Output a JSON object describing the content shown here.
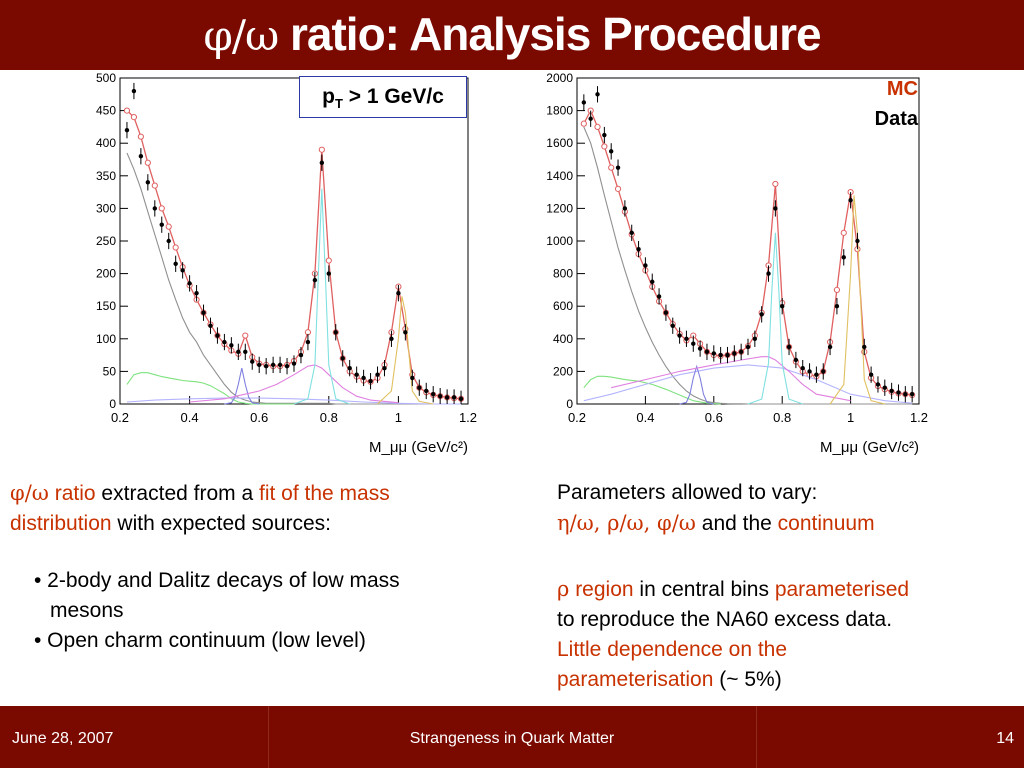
{
  "header": {
    "title_symbols": "φ/ω",
    "title_text": " ratio: Analysis Procedure"
  },
  "left_plot_box": {
    "label_p": "p",
    "label_sub": "T",
    "label_rest": " > 1 GeV/c"
  },
  "legend": {
    "mc": "MC",
    "data": "Data"
  },
  "chart_data": [
    {
      "type": "line",
      "panel": "left",
      "title": "",
      "xlabel": "M_μμ (GeV/c²)",
      "ylabel": "",
      "xlim": [
        0.2,
        1.2
      ],
      "ylim": [
        0,
        500
      ],
      "xticks": [
        0.2,
        0.4,
        0.6,
        0.8,
        1,
        1.2
      ],
      "yticks": [
        0,
        50,
        100,
        150,
        200,
        250,
        300,
        350,
        400,
        450,
        500
      ],
      "series": [
        {
          "role": "data",
          "color": "#000000",
          "x": [
            0.22,
            0.24,
            0.26,
            0.28,
            0.3,
            0.32,
            0.34,
            0.36,
            0.38,
            0.4,
            0.42,
            0.44,
            0.46,
            0.48,
            0.5,
            0.52,
            0.54,
            0.56,
            0.58,
            0.6,
            0.62,
            0.64,
            0.66,
            0.68,
            0.7,
            0.72,
            0.74,
            0.76,
            0.78,
            0.8,
            0.82,
            0.84,
            0.86,
            0.88,
            0.9,
            0.92,
            0.94,
            0.96,
            0.98,
            1.0,
            1.02,
            1.04,
            1.06,
            1.08,
            1.1,
            1.12,
            1.14,
            1.16,
            1.18
          ],
          "y": [
            420,
            480,
            380,
            340,
            300,
            275,
            250,
            215,
            205,
            185,
            170,
            140,
            120,
            105,
            95,
            90,
            80,
            80,
            65,
            60,
            58,
            60,
            60,
            58,
            62,
            75,
            95,
            190,
            370,
            200,
            110,
            70,
            55,
            45,
            40,
            35,
            45,
            55,
            100,
            170,
            110,
            40,
            25,
            20,
            15,
            12,
            10,
            10,
            8
          ]
        },
        {
          "role": "mc_total",
          "color": "#e06060",
          "x": [
            0.22,
            0.24,
            0.26,
            0.28,
            0.3,
            0.32,
            0.34,
            0.36,
            0.38,
            0.4,
            0.42,
            0.44,
            0.46,
            0.48,
            0.5,
            0.52,
            0.54,
            0.56,
            0.58,
            0.6,
            0.62,
            0.64,
            0.66,
            0.68,
            0.7,
            0.72,
            0.74,
            0.76,
            0.78,
            0.8,
            0.82,
            0.84,
            0.86,
            0.88,
            0.9,
            0.92,
            0.94,
            0.96,
            0.98,
            1.0,
            1.02,
            1.04,
            1.06,
            1.08,
            1.1,
            1.12,
            1.14,
            1.16,
            1.18
          ],
          "y": [
            450,
            440,
            410,
            370,
            335,
            300,
            272,
            240,
            210,
            182,
            160,
            140,
            122,
            105,
            92,
            82,
            77,
            105,
            72,
            62,
            60,
            58,
            58,
            60,
            66,
            80,
            110,
            200,
            390,
            220,
            110,
            70,
            50,
            42,
            36,
            34,
            40,
            60,
            110,
            180,
            115,
            45,
            25,
            18,
            14,
            12,
            10,
            9,
            8
          ]
        },
        {
          "role": "continuum",
          "color": "#909090",
          "x": [
            0.22,
            0.24,
            0.26,
            0.28,
            0.3,
            0.32,
            0.34,
            0.36,
            0.38,
            0.4,
            0.42,
            0.44,
            0.46,
            0.48,
            0.5,
            0.52,
            0.54,
            0.56,
            0.58,
            0.6,
            0.62,
            0.64,
            0.66,
            0.68,
            0.7,
            0.72,
            0.74,
            0.76,
            0.78,
            0.8,
            0.82,
            0.84,
            0.86,
            0.88,
            0.9,
            0.92,
            0.94,
            0.96,
            0.98,
            1.0,
            1.02,
            1.04,
            1.06,
            1.08,
            1.1,
            1.12,
            1.14,
            1.16,
            1.18
          ],
          "y": [
            385,
            360,
            330,
            295,
            260,
            225,
            190,
            160,
            132,
            110,
            95,
            75,
            60,
            45,
            30,
            18,
            10,
            6,
            3,
            2,
            1,
            1,
            1,
            1,
            1,
            1,
            1,
            1,
            1,
            1,
            0,
            0,
            0,
            0,
            0,
            0,
            0,
            0,
            0,
            0,
            0,
            0,
            0,
            0,
            0,
            0,
            0,
            0,
            0
          ]
        },
        {
          "role": "eta_dalitz",
          "color": "#7ee27e",
          "x": [
            0.22,
            0.24,
            0.26,
            0.28,
            0.3,
            0.32,
            0.34,
            0.36,
            0.38,
            0.4,
            0.42,
            0.44,
            0.46,
            0.48,
            0.5,
            0.52,
            0.54,
            0.56,
            0.58,
            0.6,
            0.62,
            0.64,
            0.66,
            0.68,
            0.7
          ],
          "y": [
            30,
            45,
            48,
            48,
            45,
            42,
            40,
            38,
            36,
            35,
            34,
            32,
            28,
            22,
            16,
            8,
            3,
            1,
            0,
            0,
            0,
            0,
            0,
            0,
            0
          ]
        },
        {
          "role": "omega_dalitz",
          "color": "#b4b4ff",
          "x": [
            0.22,
            0.3,
            0.4,
            0.5,
            0.6,
            0.7,
            0.8,
            0.9,
            1.0,
            1.1,
            1.18
          ],
          "y": [
            3,
            6,
            8,
            9,
            9,
            8,
            6,
            3,
            1,
            0,
            0
          ]
        },
        {
          "role": "eta",
          "color": "#8080e0",
          "x": [
            0.5,
            0.52,
            0.53,
            0.54,
            0.55,
            0.56,
            0.57,
            0.58,
            0.6
          ],
          "y": [
            0,
            2,
            10,
            30,
            55,
            30,
            10,
            2,
            0
          ]
        },
        {
          "role": "rho",
          "color": "#e080e0",
          "x": [
            0.4,
            0.5,
            0.6,
            0.65,
            0.7,
            0.74,
            0.76,
            0.78,
            0.8,
            0.84,
            0.88,
            0.92,
            1.0
          ],
          "y": [
            3,
            8,
            20,
            30,
            45,
            58,
            60,
            55,
            45,
            25,
            12,
            6,
            2
          ]
        },
        {
          "role": "omega",
          "color": "#80e0e0",
          "x": [
            0.7,
            0.74,
            0.76,
            0.77,
            0.78,
            0.79,
            0.8,
            0.82,
            0.86
          ],
          "y": [
            0,
            8,
            60,
            200,
            330,
            200,
            60,
            8,
            0
          ]
        },
        {
          "role": "phi",
          "color": "#e0c060",
          "x": [
            0.94,
            0.98,
            1.0,
            1.01,
            1.02,
            1.03,
            1.04,
            1.06,
            1.1
          ],
          "y": [
            0,
            20,
            100,
            165,
            140,
            80,
            20,
            4,
            0
          ]
        }
      ]
    },
    {
      "type": "line",
      "panel": "right",
      "title": "",
      "xlabel": "M_μμ (GeV/c²)",
      "ylabel": "",
      "xlim": [
        0.2,
        1.2
      ],
      "ylim": [
        0,
        2000
      ],
      "xticks": [
        0.2,
        0.4,
        0.6,
        0.8,
        1,
        1.2
      ],
      "yticks": [
        0,
        200,
        400,
        600,
        800,
        1000,
        1200,
        1400,
        1600,
        1800,
        2000
      ],
      "series": [
        {
          "role": "data",
          "color": "#000000",
          "x": [
            0.22,
            0.24,
            0.26,
            0.28,
            0.3,
            0.32,
            0.34,
            0.36,
            0.38,
            0.4,
            0.42,
            0.44,
            0.46,
            0.48,
            0.5,
            0.52,
            0.54,
            0.56,
            0.58,
            0.6,
            0.62,
            0.64,
            0.66,
            0.68,
            0.7,
            0.72,
            0.74,
            0.76,
            0.78,
            0.8,
            0.82,
            0.84,
            0.86,
            0.88,
            0.9,
            0.92,
            0.94,
            0.96,
            0.98,
            1.0,
            1.02,
            1.04,
            1.06,
            1.08,
            1.1,
            1.12,
            1.14,
            1.16,
            1.18
          ],
          "y": [
            1850,
            1750,
            1900,
            1650,
            1550,
            1450,
            1200,
            1050,
            950,
            850,
            750,
            660,
            560,
            480,
            420,
            400,
            370,
            340,
            320,
            310,
            300,
            300,
            310,
            320,
            350,
            400,
            550,
            800,
            1200,
            600,
            350,
            270,
            220,
            200,
            180,
            200,
            350,
            600,
            900,
            1250,
            1000,
            350,
            180,
            120,
            100,
            80,
            70,
            60,
            60
          ]
        },
        {
          "role": "mc_total",
          "color": "#e06060",
          "x": [
            0.22,
            0.24,
            0.26,
            0.28,
            0.3,
            0.32,
            0.34,
            0.36,
            0.38,
            0.4,
            0.42,
            0.44,
            0.46,
            0.48,
            0.5,
            0.52,
            0.54,
            0.56,
            0.58,
            0.6,
            0.62,
            0.64,
            0.66,
            0.68,
            0.7,
            0.72,
            0.74,
            0.76,
            0.78,
            0.8,
            0.82,
            0.84,
            0.86,
            0.88,
            0.9,
            0.92,
            0.94,
            0.96,
            0.98,
            1.0,
            1.02,
            1.04,
            1.06,
            1.08,
            1.1,
            1.12,
            1.14,
            1.16,
            1.18
          ],
          "y": [
            1720,
            1800,
            1700,
            1580,
            1450,
            1320,
            1180,
            1040,
            920,
            820,
            720,
            630,
            560,
            490,
            430,
            390,
            420,
            370,
            320,
            300,
            295,
            300,
            310,
            320,
            355,
            420,
            560,
            850,
            1350,
            620,
            350,
            260,
            200,
            180,
            170,
            200,
            380,
            700,
            1050,
            1300,
            950,
            320,
            160,
            110,
            90,
            75,
            65,
            60,
            55
          ]
        },
        {
          "role": "continuum",
          "color": "#909090",
          "x": [
            0.22,
            0.24,
            0.26,
            0.28,
            0.3,
            0.32,
            0.34,
            0.36,
            0.38,
            0.4,
            0.42,
            0.44,
            0.46,
            0.48,
            0.5,
            0.52,
            0.54,
            0.56,
            0.58,
            0.6,
            0.62,
            0.64,
            0.66,
            0.68,
            0.7,
            0.8,
            0.9,
            1.0,
            1.1,
            1.18
          ],
          "y": [
            1700,
            1600,
            1450,
            1280,
            1120,
            960,
            820,
            690,
            570,
            470,
            380,
            300,
            230,
            170,
            120,
            80,
            50,
            30,
            15,
            8,
            4,
            2,
            1,
            1,
            0,
            0,
            0,
            0,
            0,
            0
          ]
        },
        {
          "role": "eta_dalitz",
          "color": "#7ee27e",
          "x": [
            0.22,
            0.24,
            0.26,
            0.28,
            0.3,
            0.34,
            0.38,
            0.42,
            0.46,
            0.5,
            0.54,
            0.58,
            0.62
          ],
          "y": [
            100,
            150,
            170,
            170,
            165,
            150,
            140,
            120,
            90,
            55,
            20,
            5,
            0
          ]
        },
        {
          "role": "omega_dalitz",
          "color": "#b4b4ff",
          "x": [
            0.22,
            0.3,
            0.4,
            0.5,
            0.6,
            0.7,
            0.8,
            0.9,
            1.0,
            1.1,
            1.18
          ],
          "y": [
            20,
            60,
            120,
            180,
            220,
            240,
            220,
            150,
            60,
            20,
            5
          ]
        },
        {
          "role": "eta",
          "color": "#8080e0",
          "x": [
            0.5,
            0.52,
            0.53,
            0.54,
            0.55,
            0.56,
            0.57,
            0.58,
            0.6
          ],
          "y": [
            0,
            10,
            60,
            160,
            230,
            160,
            60,
            10,
            0
          ]
        },
        {
          "role": "rho",
          "color": "#e080e0",
          "x": [
            0.3,
            0.4,
            0.5,
            0.6,
            0.68,
            0.74,
            0.76,
            0.78,
            0.82,
            0.86,
            0.9,
            1.0
          ],
          "y": [
            100,
            150,
            200,
            240,
            270,
            290,
            290,
            270,
            200,
            120,
            60,
            20
          ]
        },
        {
          "role": "omega",
          "color": "#80e0e0",
          "x": [
            0.7,
            0.74,
            0.76,
            0.77,
            0.78,
            0.79,
            0.8,
            0.82,
            0.86
          ],
          "y": [
            0,
            30,
            250,
            700,
            1050,
            700,
            250,
            30,
            0
          ]
        },
        {
          "role": "phi",
          "color": "#e0c060",
          "x": [
            0.94,
            0.98,
            1.0,
            1.01,
            1.02,
            1.03,
            1.04,
            1.06,
            1.1
          ],
          "y": [
            0,
            120,
            800,
            1280,
            1050,
            600,
            150,
            20,
            0
          ]
        }
      ]
    }
  ],
  "left_text": {
    "sym1": "φ/ω",
    "part1": " ratio",
    "part2": " extracted from a ",
    "part3": "fit of the mass",
    "part4": "distribution",
    "part5": " with expected sources:",
    "bullet1a": "• 2-body and Dalitz decays of low mass",
    "bullet1b": "mesons",
    "bullet2": "• Open charm continuum (low level)"
  },
  "right_text": {
    "line1": "Parameters allowed to vary:",
    "syms": "η/ω, ρ/ω, φ/ω",
    "mid": " and the ",
    "continuum": "continuum",
    "rho_sym": "ρ",
    "region": " region",
    "central": " in central bins ",
    "param": "parameterised",
    "line4": "to reproduce the NA60 excess data.",
    "line5": "Little dependence on the",
    "line6": "parameterisation",
    "pct": "  (~ 5%)"
  },
  "footer": {
    "date": "June 28, 2007",
    "conference": "Strangeness in Quark Matter",
    "page": "14"
  }
}
